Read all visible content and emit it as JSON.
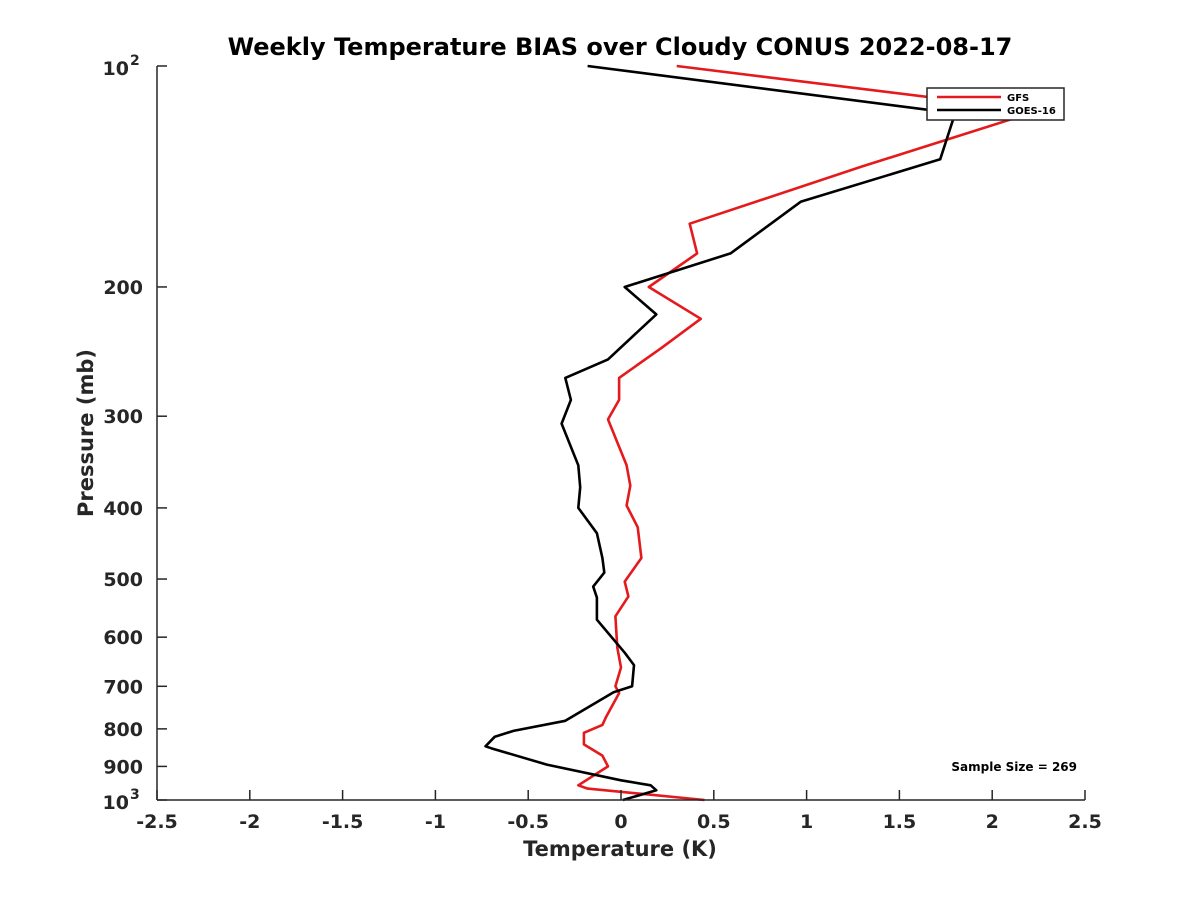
{
  "chart_data": {
    "type": "line",
    "title": "Weekly Temperature BIAS over Cloudy CONUS 2022-08-17",
    "xlabel": "Temperature (K)",
    "ylabel": "Pressure (mb)",
    "xlim": [
      -2.5,
      2.5
    ],
    "ylim": [
      100,
      1000
    ],
    "y_scale": "log",
    "y_reversed": true,
    "grid": false,
    "legend_position": "top-right",
    "x_ticks": [
      "-2.5",
      "-2",
      "-1.5",
      "-1",
      "-0.5",
      "0",
      "0.5",
      "1",
      "1.5",
      "2",
      "2.5"
    ],
    "x_tick_values": [
      -2.5,
      -2,
      -1.5,
      -1,
      -0.5,
      0,
      0.5,
      1,
      1.5,
      2,
      2.5
    ],
    "y_ticks": [
      {
        "value": 100,
        "base": "10",
        "exp": "2"
      },
      {
        "value": 200,
        "label": "200"
      },
      {
        "value": 300,
        "label": "300"
      },
      {
        "value": 400,
        "label": "400"
      },
      {
        "value": 500,
        "label": "500"
      },
      {
        "value": 600,
        "label": "600"
      },
      {
        "value": 700,
        "label": "700"
      },
      {
        "value": 800,
        "label": "800"
      },
      {
        "value": 900,
        "label": "900"
      },
      {
        "value": 1000,
        "base": "10",
        "exp": "3"
      }
    ],
    "annotation": "Sample Size = 269",
    "series": [
      {
        "name": "GFS",
        "color": "#e41a1c",
        "points": [
          [
            0.3,
            100
          ],
          [
            2.25,
            115
          ],
          [
            1.3,
            137
          ],
          [
            0.37,
            164
          ],
          [
            0.41,
            180
          ],
          [
            0.15,
            200
          ],
          [
            0.43,
            221
          ],
          [
            0.22,
            242
          ],
          [
            -0.01,
            266
          ],
          [
            -0.01,
            285
          ],
          [
            -0.07,
            303
          ],
          [
            0.03,
            350
          ],
          [
            0.05,
            373
          ],
          [
            0.03,
            397
          ],
          [
            0.09,
            425
          ],
          [
            0.11,
            468
          ],
          [
            0.02,
            504
          ],
          [
            0.04,
            528
          ],
          [
            -0.03,
            562
          ],
          [
            -0.02,
            620
          ],
          [
            0.0,
            660
          ],
          [
            -0.03,
            700
          ],
          [
            -0.01,
            715
          ],
          [
            -0.08,
            770
          ],
          [
            -0.1,
            790
          ],
          [
            -0.2,
            810
          ],
          [
            -0.2,
            840
          ],
          [
            -0.1,
            870
          ],
          [
            -0.07,
            900
          ],
          [
            -0.23,
            955
          ],
          [
            -0.18,
            965
          ],
          [
            0.45,
            1000
          ]
        ]
      },
      {
        "name": "GOES-16",
        "color": "#000000",
        "points": [
          [
            -0.18,
            100
          ],
          [
            1.8,
            116
          ],
          [
            1.72,
            134
          ],
          [
            0.97,
            153
          ],
          [
            0.59,
            180
          ],
          [
            0.02,
            200
          ],
          [
            0.19,
            218
          ],
          [
            -0.07,
            251
          ],
          [
            -0.3,
            266
          ],
          [
            -0.27,
            285
          ],
          [
            -0.32,
            307
          ],
          [
            -0.23,
            350
          ],
          [
            -0.22,
            375
          ],
          [
            -0.23,
            400
          ],
          [
            -0.13,
            433
          ],
          [
            -0.1,
            468
          ],
          [
            -0.09,
            490
          ],
          [
            -0.15,
            512
          ],
          [
            -0.13,
            530
          ],
          [
            -0.13,
            568
          ],
          [
            0.02,
            630
          ],
          [
            0.07,
            655
          ],
          [
            0.06,
            700
          ],
          [
            -0.04,
            713
          ],
          [
            -0.3,
            780
          ],
          [
            -0.58,
            805
          ],
          [
            -0.68,
            820
          ],
          [
            -0.73,
            845
          ],
          [
            -0.7,
            850
          ],
          [
            -0.4,
            895
          ],
          [
            0.0,
            940
          ],
          [
            0.16,
            955
          ],
          [
            0.19,
            970
          ],
          [
            0.01,
            1000
          ]
        ]
      }
    ]
  }
}
